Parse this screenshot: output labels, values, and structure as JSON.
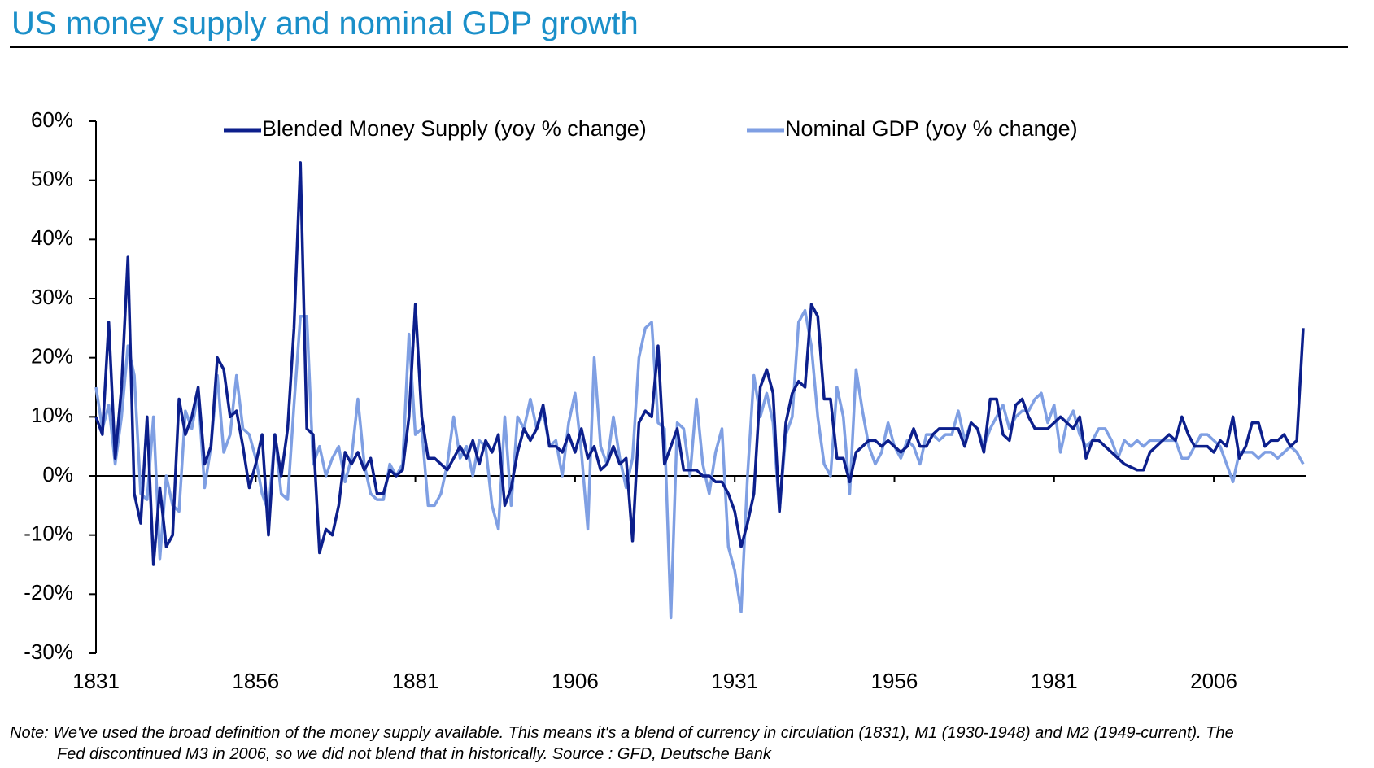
{
  "chart_data": {
    "type": "line",
    "title": "US money supply and nominal GDP growth",
    "note": [
      "Note: We've used the broad definition of the money supply available. This means it's a blend of currency in circulation (1831), M1 (1930-1948) and M2 (1949-current). The",
      "Fed discontinued M3 in 2006, so we did not blend that in historically. Source : GFD, Deutsche Bank"
    ],
    "legend": "top",
    "x": [
      1831,
      1832,
      1833,
      1834,
      1835,
      1836,
      1837,
      1838,
      1839,
      1840,
      1841,
      1842,
      1843,
      1844,
      1845,
      1846,
      1847,
      1848,
      1849,
      1850,
      1851,
      1852,
      1853,
      1854,
      1855,
      1856,
      1857,
      1858,
      1859,
      1860,
      1861,
      1862,
      1863,
      1864,
      1865,
      1866,
      1867,
      1868,
      1869,
      1870,
      1871,
      1872,
      1873,
      1874,
      1875,
      1876,
      1877,
      1878,
      1879,
      1880,
      1881,
      1882,
      1883,
      1884,
      1885,
      1886,
      1887,
      1888,
      1889,
      1890,
      1891,
      1892,
      1893,
      1894,
      1895,
      1896,
      1897,
      1898,
      1899,
      1900,
      1901,
      1902,
      1903,
      1904,
      1905,
      1906,
      1907,
      1908,
      1909,
      1910,
      1911,
      1912,
      1913,
      1914,
      1915,
      1916,
      1917,
      1918,
      1919,
      1920,
      1921,
      1922,
      1923,
      1924,
      1925,
      1926,
      1927,
      1928,
      1929,
      1930,
      1931,
      1932,
      1933,
      1934,
      1935,
      1936,
      1937,
      1938,
      1939,
      1940,
      1941,
      1942,
      1943,
      1944,
      1945,
      1946,
      1947,
      1948,
      1949,
      1950,
      1951,
      1952,
      1953,
      1954,
      1955,
      1956,
      1957,
      1958,
      1959,
      1960,
      1961,
      1962,
      1963,
      1964,
      1965,
      1966,
      1967,
      1968,
      1969,
      1970,
      1971,
      1972,
      1973,
      1974,
      1975,
      1976,
      1977,
      1978,
      1979,
      1980,
      1981,
      1982,
      1983,
      1984,
      1985,
      1986,
      1987,
      1988,
      1989,
      1990,
      1991,
      1992,
      1993,
      1994,
      1995,
      1996,
      1997,
      1998,
      1999,
      2000,
      2001,
      2002,
      2003,
      2004,
      2005,
      2006,
      2007,
      2008,
      2009,
      2010,
      2011,
      2012,
      2013,
      2014,
      2015,
      2016,
      2017,
      2018,
      2019,
      2020
    ],
    "series": [
      {
        "name": "Blended Money Supply (yoy % change)",
        "color": "#0c1f8c",
        "values": [
          10,
          7,
          26,
          3,
          15,
          37,
          -3,
          -8,
          10,
          -15,
          -2,
          -12,
          -10,
          13,
          7,
          10,
          15,
          2,
          5,
          20,
          18,
          10,
          11,
          5,
          -2,
          2,
          7,
          -10,
          7,
          0,
          8,
          25,
          53,
          8,
          7,
          -13,
          -9,
          -10,
          -5,
          4,
          2,
          4,
          1,
          3,
          -3,
          -3,
          1,
          0,
          1,
          10,
          29,
          10,
          3,
          3,
          2,
          1,
          3,
          5,
          3,
          6,
          2,
          6,
          4,
          7,
          -5,
          -2,
          4,
          8,
          6,
          8,
          12,
          5,
          5,
          4,
          7,
          4,
          8,
          3,
          5,
          1,
          2,
          5,
          2,
          3,
          -11,
          9,
          11,
          10,
          22,
          2,
          5,
          8,
          1,
          1,
          1,
          0,
          0,
          -1,
          -1,
          -3,
          -6,
          -12,
          -8,
          -3,
          15,
          18,
          14,
          -6,
          9,
          14,
          16,
          15,
          29,
          27,
          13,
          13,
          3,
          3,
          -1,
          4,
          5,
          6,
          6,
          5,
          6,
          5,
          4,
          5,
          8,
          5,
          5,
          7,
          8,
          8,
          8,
          8,
          5,
          9,
          8,
          4,
          13,
          13,
          7,
          6,
          12,
          13,
          10,
          8,
          8,
          8,
          9,
          10,
          9,
          8,
          10,
          3,
          6,
          6,
          5,
          4,
          3,
          2,
          1.5,
          1,
          1,
          4,
          5,
          6,
          7,
          6,
          10,
          7,
          5,
          5,
          5,
          4,
          6,
          5,
          10,
          3,
          5,
          9,
          9,
          5,
          6,
          6,
          7,
          5,
          6,
          25
        ]
      },
      {
        "name": "Nominal GDP (yoy % change)",
        "color": "#7f9fe3",
        "values": [
          15,
          8,
          12,
          2,
          10,
          22,
          17,
          -3,
          -4,
          10,
          -14,
          0,
          -5,
          -6,
          11,
          8,
          14,
          -2,
          5,
          17,
          4,
          7,
          17,
          8,
          7,
          3,
          -3,
          -6,
          7,
          -3,
          -4,
          12,
          27,
          27,
          2,
          5,
          0,
          3,
          5,
          -1,
          3,
          13,
          2,
          -3,
          -4,
          -4,
          2,
          0,
          2,
          24,
          7,
          8,
          -5,
          -5,
          -3,
          2,
          10,
          3,
          5,
          0,
          6,
          5,
          -5,
          -9,
          10,
          -5,
          10,
          8,
          13,
          8,
          11,
          5,
          6,
          0,
          9,
          14,
          4,
          -9,
          20,
          5,
          2,
          10,
          3,
          -2,
          3,
          20,
          25,
          26,
          9,
          8,
          -24,
          9,
          8,
          0,
          13,
          2,
          -3,
          4,
          8,
          -12,
          -16,
          -23,
          0,
          17,
          10,
          14,
          9,
          -6,
          7,
          10,
          26,
          28,
          22,
          10,
          2,
          0,
          15,
          10,
          -3,
          18,
          11,
          5,
          2,
          4,
          9,
          5,
          3,
          6,
          5,
          2,
          7,
          7,
          6,
          7,
          7,
          11,
          6,
          9,
          8,
          5,
          8,
          10,
          12,
          8,
          10,
          11,
          11,
          13,
          14,
          9,
          12,
          4,
          9,
          11,
          7,
          5,
          6,
          8,
          8,
          6,
          3,
          6,
          5,
          6,
          5,
          6,
          6,
          6,
          6,
          6,
          3,
          3,
          5,
          7,
          7,
          6,
          5,
          2,
          -1,
          4,
          4,
          4,
          3,
          4,
          4,
          3,
          4,
          5,
          4,
          2
        ]
      }
    ],
    "xlim": [
      1831,
      2020
    ],
    "xticks": [
      1831,
      1856,
      1881,
      1906,
      1931,
      1956,
      1981,
      2006
    ],
    "ylim": [
      -30,
      60
    ],
    "yticks": [
      {
        "value": -30,
        "label": "-30%"
      },
      {
        "value": -20,
        "label": "-20%"
      },
      {
        "value": -10,
        "label": "-10%"
      },
      {
        "value": 0,
        "label": "0%"
      },
      {
        "value": 10,
        "label": "10%"
      },
      {
        "value": 20,
        "label": "20%"
      },
      {
        "value": 30,
        "label": "30%"
      },
      {
        "value": 40,
        "label": "40%"
      },
      {
        "value": 50,
        "label": "50%"
      },
      {
        "value": 60,
        "label": "60%"
      }
    ],
    "grid": false
  }
}
